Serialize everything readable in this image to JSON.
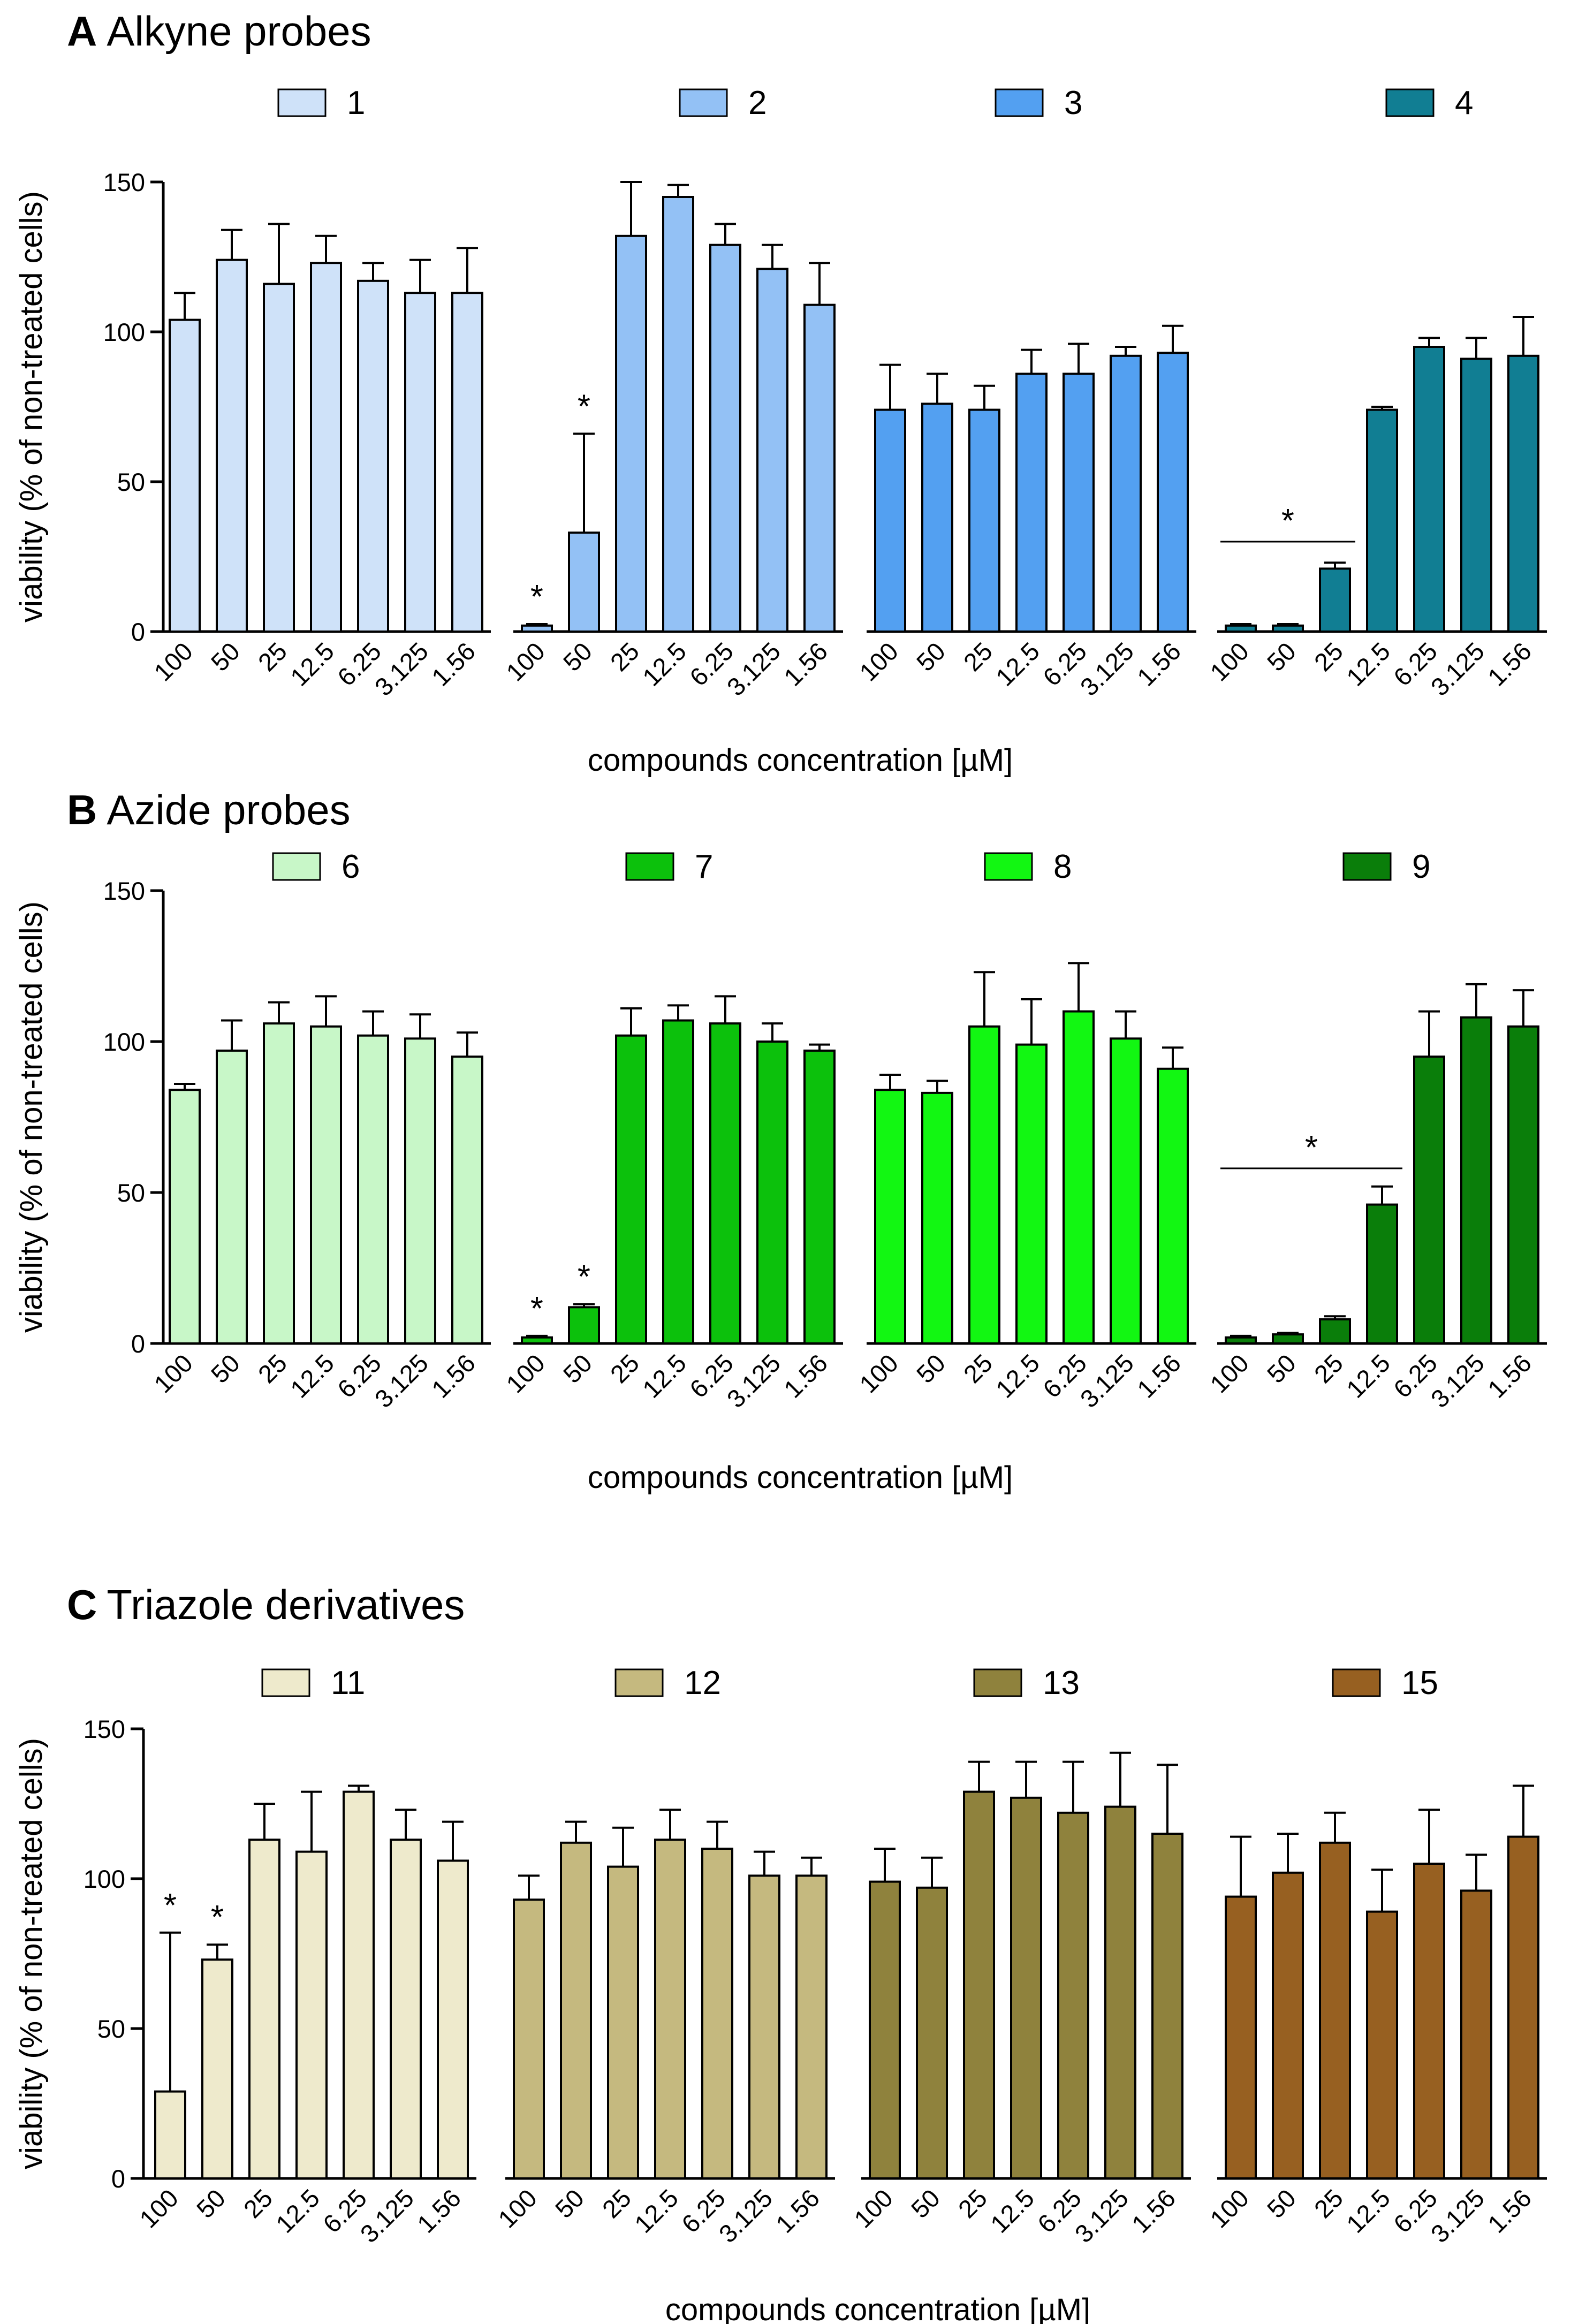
{
  "chart_data": [
    {
      "type": "bar",
      "panel": "A",
      "title": "Alkyne probes",
      "xlabel": "compounds concentration [µM]",
      "ylabel": "viability (% of non-treated cells)",
      "ylim": [
        0,
        150
      ],
      "yticks": [
        "0",
        "50",
        "100",
        "150"
      ],
      "categories": [
        "100",
        "50",
        "25",
        "12.5",
        "6.25",
        "3.125",
        "1.56"
      ],
      "series": [
        {
          "name": "1",
          "color": "#cfe2f9",
          "values": [
            104,
            124,
            116,
            123,
            117,
            113,
            113
          ],
          "errors": [
            9,
            10,
            20,
            9,
            6,
            11,
            15
          ],
          "stars": []
        },
        {
          "name": "2",
          "color": "#93c1f5",
          "values": [
            2,
            33,
            132,
            145,
            129,
            121,
            109
          ],
          "errors": [
            0.5,
            33,
            18,
            4,
            7,
            8,
            14
          ],
          "stars": [
            0,
            1
          ]
        },
        {
          "name": "3",
          "color": "#53a0f1",
          "values": [
            74,
            76,
            74,
            86,
            86,
            92,
            93
          ],
          "errors": [
            15,
            10,
            8,
            8,
            10,
            3,
            9
          ],
          "stars": []
        },
        {
          "name": "4",
          "color": "#117e93",
          "values": [
            2,
            2,
            21,
            74,
            95,
            91,
            92
          ],
          "errors": [
            0.5,
            0.5,
            2,
            1,
            3,
            7,
            13
          ],
          "stars": [],
          "bracket": [
            0,
            2,
            30
          ]
        }
      ]
    },
    {
      "type": "bar",
      "panel": "B",
      "title": "Azide probes",
      "xlabel": "compounds concentration [µM]",
      "ylabel": "viability (% of non-treated cells)",
      "ylim": [
        0,
        150
      ],
      "yticks": [
        "0",
        "50",
        "100",
        "150"
      ],
      "categories": [
        "100",
        "50",
        "25",
        "12.5",
        "6.25",
        "3.125",
        "1.56"
      ],
      "series": [
        {
          "name": "6",
          "color": "#c8f7c8",
          "values": [
            84,
            97,
            106,
            105,
            102,
            101,
            95
          ],
          "errors": [
            2,
            10,
            7,
            10,
            8,
            8,
            8
          ],
          "stars": []
        },
        {
          "name": "7",
          "color": "#0cc10c",
          "values": [
            2,
            12,
            102,
            107,
            106,
            100,
            97
          ],
          "errors": [
            0.5,
            1,
            9,
            5,
            9,
            6,
            2
          ],
          "stars": [
            0,
            1
          ]
        },
        {
          "name": "8",
          "color": "#12f712",
          "values": [
            84,
            83,
            105,
            99,
            110,
            101,
            91
          ],
          "errors": [
            5,
            4,
            18,
            15,
            16,
            9,
            7
          ],
          "stars": []
        },
        {
          "name": "9",
          "color": "#0a7e0a",
          "values": [
            2,
            3,
            8,
            46,
            95,
            108,
            105
          ],
          "errors": [
            0.5,
            0.5,
            1,
            6,
            15,
            11,
            12
          ],
          "stars": [],
          "bracket": [
            0,
            3,
            58
          ]
        }
      ]
    },
    {
      "type": "bar",
      "panel": "C",
      "title": "Triazole derivatives",
      "xlabel": "compounds concentration [µM]",
      "ylabel": "viability (% of non-treated cells)",
      "ylim": [
        0,
        150
      ],
      "yticks": [
        "0",
        "50",
        "100",
        "150"
      ],
      "categories": [
        "100",
        "50",
        "25",
        "12.5",
        "6.25",
        "3.125",
        "1.56"
      ],
      "series": [
        {
          "name": "11",
          "color": "#eeeacc",
          "values": [
            29,
            73,
            113,
            109,
            129,
            113,
            106
          ],
          "errors": [
            53,
            5,
            12,
            20,
            2,
            10,
            13
          ],
          "stars": [
            0,
            1
          ]
        },
        {
          "name": "12",
          "color": "#c5b97f",
          "values": [
            93,
            112,
            104,
            113,
            110,
            101,
            101
          ],
          "errors": [
            8,
            7,
            13,
            10,
            9,
            8,
            6
          ],
          "stars": []
        },
        {
          "name": "13",
          "color": "#8f823d",
          "values": [
            99,
            97,
            129,
            127,
            122,
            124,
            115
          ],
          "errors": [
            11,
            10,
            10,
            12,
            17,
            18,
            23
          ],
          "stars": []
        },
        {
          "name": "15",
          "color": "#976021",
          "values": [
            94,
            102,
            112,
            89,
            105,
            96,
            114
          ],
          "errors": [
            20,
            13,
            10,
            14,
            18,
            12,
            17
          ],
          "stars": []
        }
      ]
    }
  ]
}
